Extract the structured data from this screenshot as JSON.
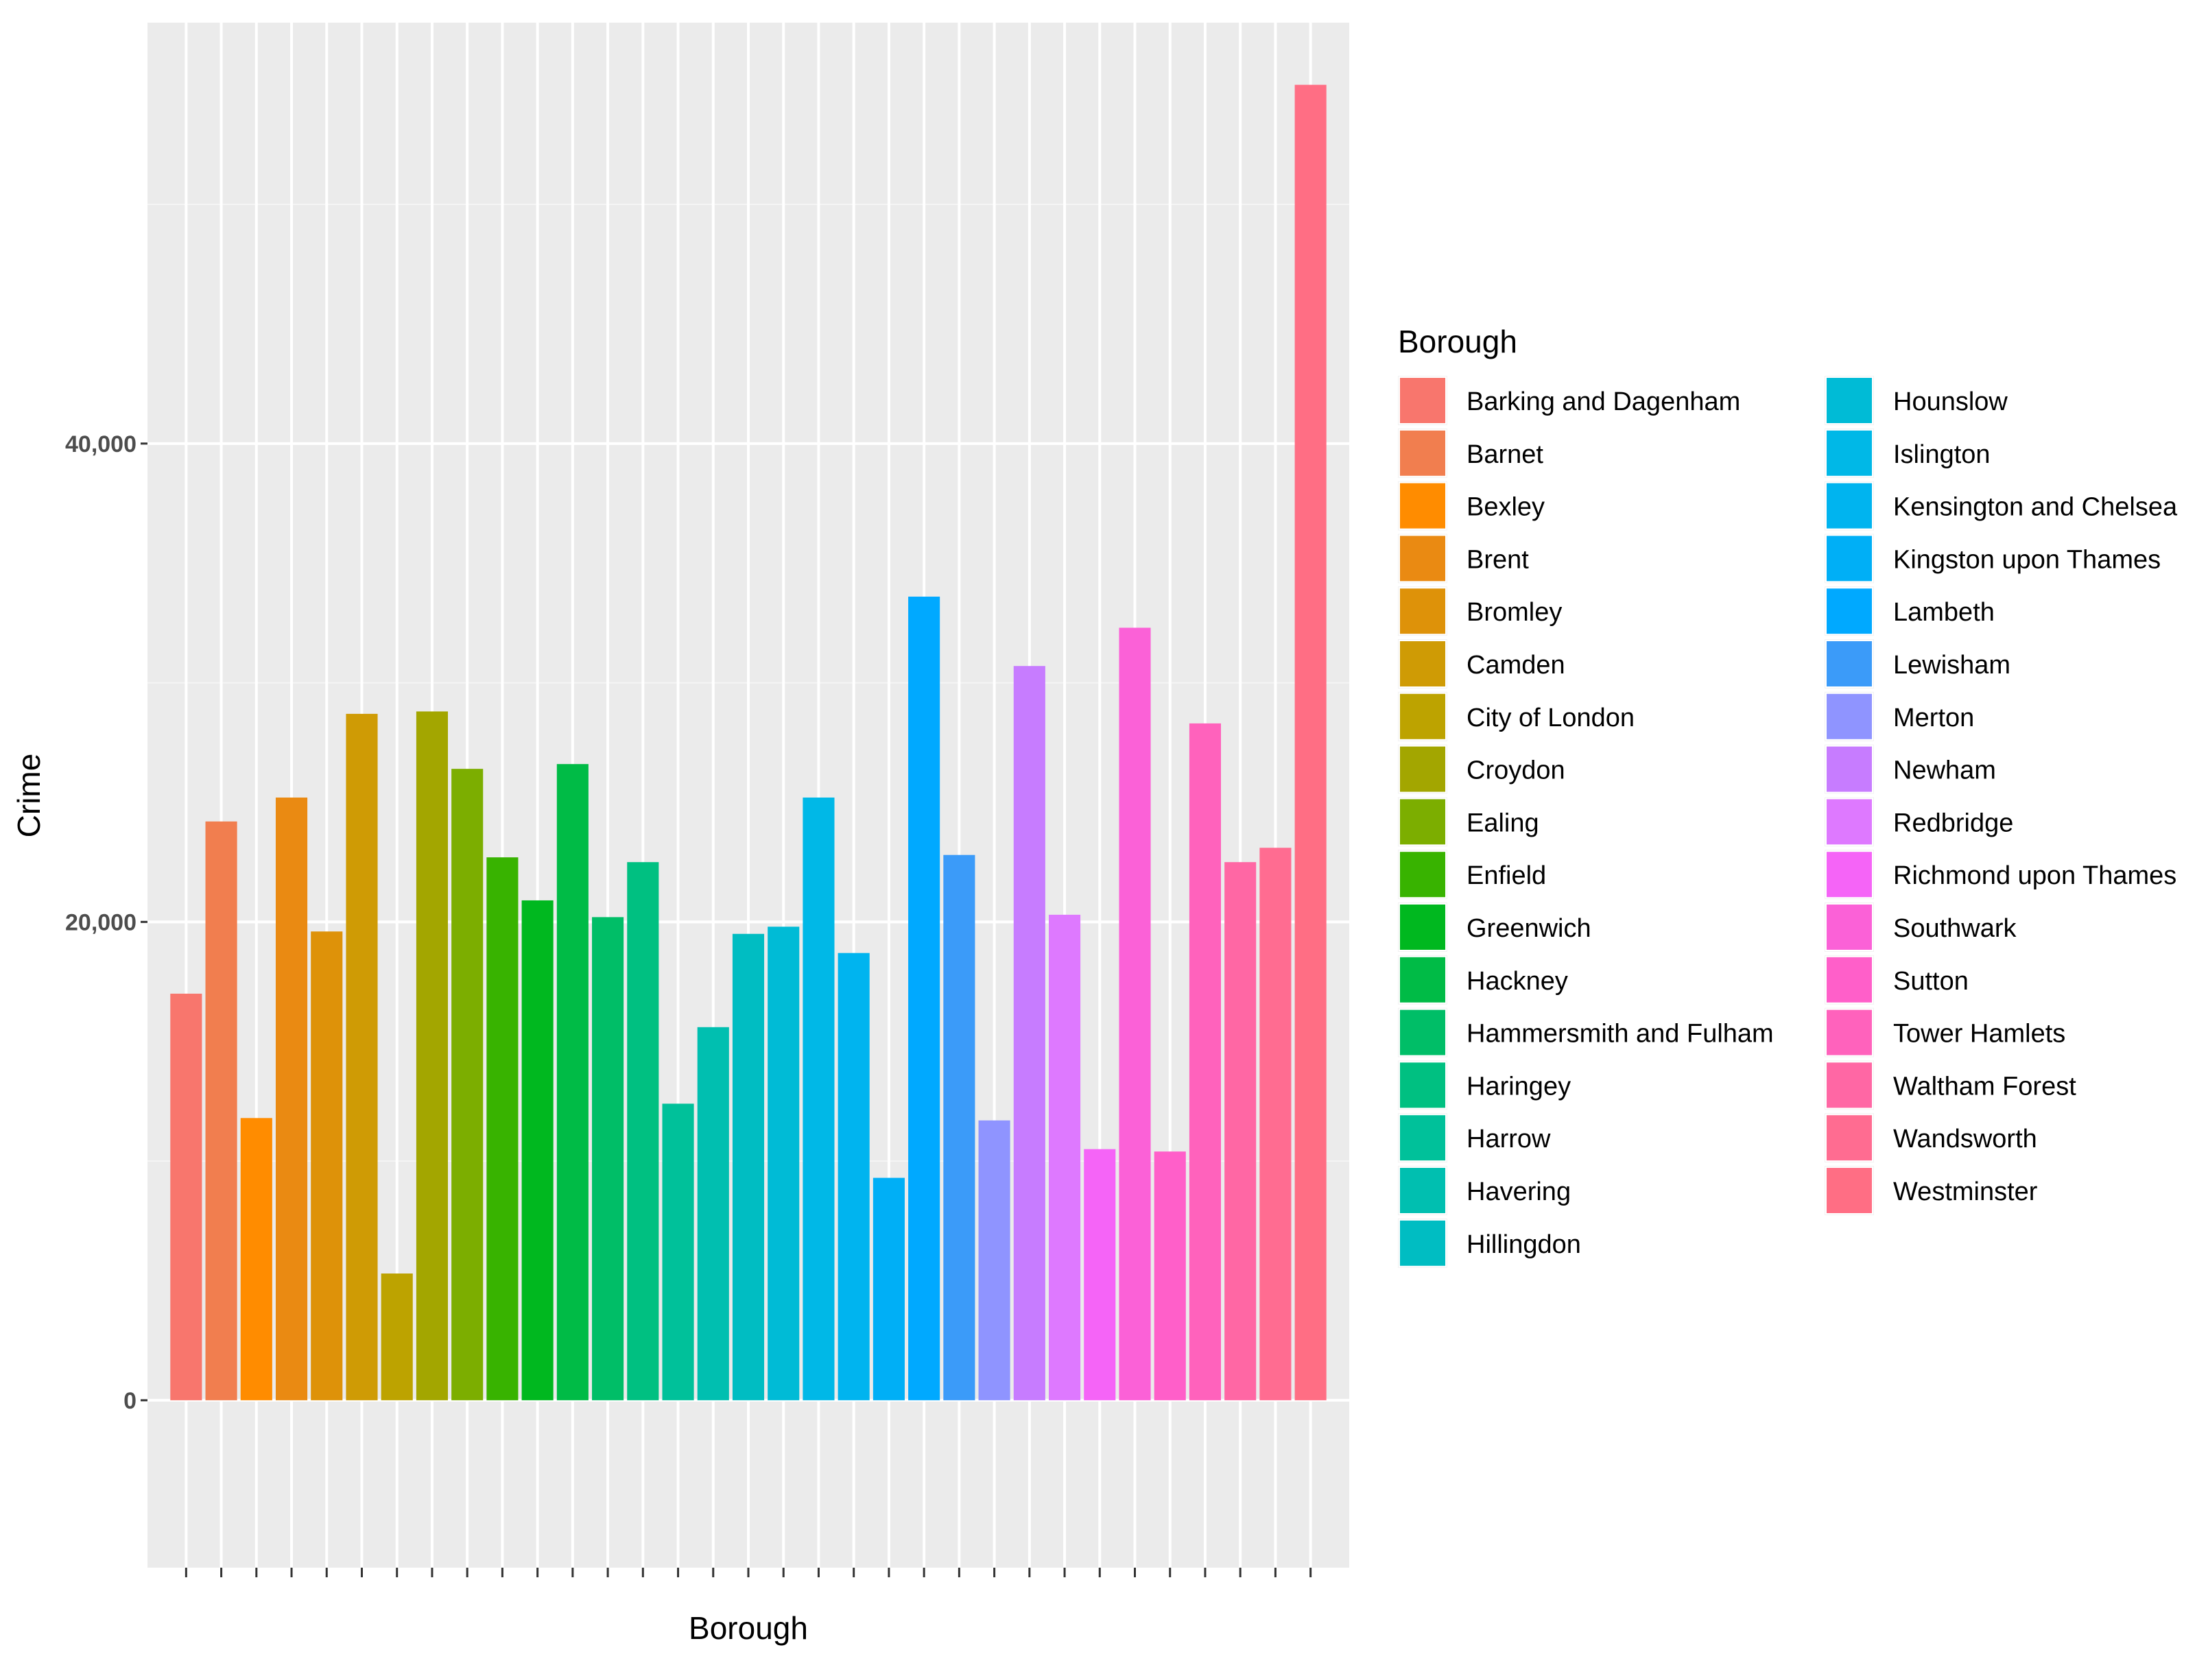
{
  "chart_data": {
    "type": "bar",
    "title": "",
    "xlabel": "Borough",
    "ylabel": "Crime",
    "ylim": [
      -7000,
      57600
    ],
    "y_ticks": [
      0,
      20000,
      40000
    ],
    "y_tick_labels": [
      "0",
      "20,000",
      "40,000"
    ],
    "legend_title": "Borough",
    "legend_position": "right",
    "categories": [
      "Barking and Dagenham",
      "Barnet",
      "Bexley",
      "Brent",
      "Bromley",
      "Camden",
      "City of London",
      "Croydon",
      "Ealing",
      "Enfield",
      "Greenwich",
      "Hackney",
      "Hammersmith and Fulham",
      "Haringey",
      "Harrow",
      "Havering",
      "Hillingdon",
      "Hounslow",
      "Islington",
      "Kensington and Chelsea",
      "Kingston upon Thames",
      "Lambeth",
      "Lewisham",
      "Merton",
      "Newham",
      "Redbridge",
      "Richmond upon Thames",
      "Southwark",
      "Sutton",
      "Tower Hamlets",
      "Waltham Forest",
      "Wandsworth",
      "Westminster"
    ],
    "bar_order": [
      "Barking and Dagenham",
      "Barnet",
      "Bexley",
      "Brent",
      "Bromley",
      "Camden",
      "City of London",
      "Croydon",
      "Ealing",
      "Enfield",
      "Greenwich",
      "Hackney",
      "Hammersmith and Fulham",
      "Haringey",
      "Harrow",
      "Havering",
      "Hillingdon",
      "Hounslow",
      "Islington",
      "Kensington and Chelsea",
      "Kingston upon Thames",
      "Lambeth",
      "Lewisham",
      "Merton",
      "Newham",
      "Redbridge",
      "Richmond upon Thames",
      "Southwark",
      "Sutton",
      "Tower Hamlets",
      "Waltham Forest",
      "Wandsworth",
      "Westminster"
    ],
    "values": [
      17000,
      24200,
      11800,
      25200,
      19600,
      28700,
      5300,
      28800,
      26400,
      22700,
      20900,
      26600,
      20200,
      22500,
      12400,
      15600,
      19500,
      19800,
      25200,
      18700,
      9300,
      33600,
      22800,
      11700,
      30700,
      20300,
      10500,
      32300,
      10400,
      28300,
      22500,
      23100,
      55000
    ],
    "colors": [
      "#F8766D",
      "#F17E4F",
      "#FF8C00",
      "#EA8A12",
      "#DE9209",
      "#CF9B05",
      "#BDA300",
      "#A3A600",
      "#7CAE00",
      "#38B300",
      "#00B81F",
      "#00BB46",
      "#00BE67",
      "#00C081",
      "#00C19A",
      "#00BFB0",
      "#00BDC2",
      "#00BBD6",
      "#00B8E7",
      "#00B4EF",
      "#00AFF6",
      "#00A9FF",
      "#3B9BF9",
      "#8F94FF",
      "#C77CFF",
      "#DE79FF",
      "#F564F7",
      "#FB61D7",
      "#FF5FC9",
      "#FF62BC",
      "#FF67A4",
      "#FF6C91",
      "#FF6E84"
    ]
  }
}
